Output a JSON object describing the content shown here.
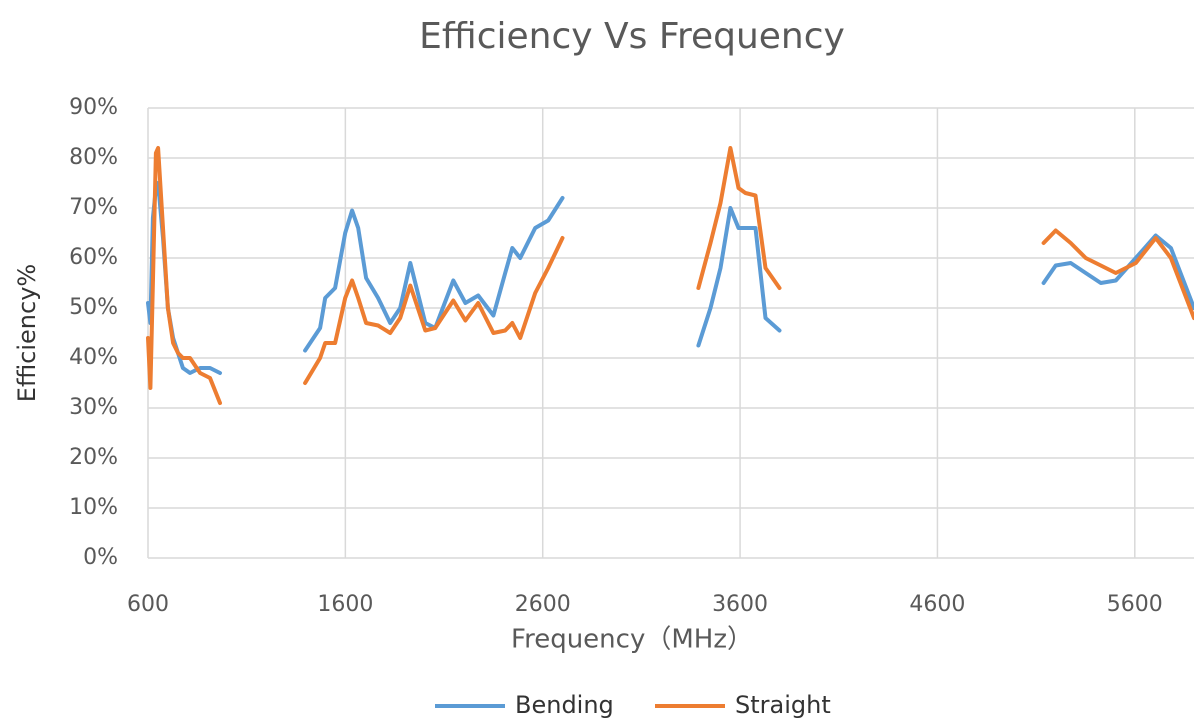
{
  "chart_data": {
    "type": "line",
    "title": "Efficiency Vs Frequency",
    "x_label": "Frequency（MHz）",
    "y_label": "Efficiency%",
    "xlim": [
      600,
      5900
    ],
    "xticks": [
      600,
      1600,
      2600,
      3600,
      4600,
      5600
    ],
    "ylim": [
      0,
      90
    ],
    "yticks": [
      {
        "value": 0,
        "label": "0%"
      },
      {
        "value": 10,
        "label": "10%"
      },
      {
        "value": 20,
        "label": "20%"
      },
      {
        "value": 30,
        "label": "30%"
      },
      {
        "value": 40,
        "label": "40%"
      },
      {
        "value": 50,
        "label": "50%"
      },
      {
        "value": 60,
        "label": "60%"
      },
      {
        "value": 70,
        "label": "70%"
      },
      {
        "value": 80,
        "label": "80%"
      },
      {
        "value": 90,
        "label": "90%"
      }
    ],
    "grid": true,
    "legend": "bottom",
    "x": [
      600,
      612,
      625,
      640,
      651,
      676,
      701,
      727,
      752,
      777,
      813,
      864,
      914,
      965,
      null,
      1396,
      1472,
      1498,
      1548,
      1599,
      1634,
      1665,
      1705,
      1766,
      1827,
      1878,
      1929,
      2005,
      2055,
      2147,
      2208,
      2273,
      2350,
      2410,
      2446,
      2486,
      2562,
      2628,
      2700,
      null,
      3389,
      3450,
      3501,
      3551,
      3592,
      3627,
      3678,
      3729,
      3800,
      null,
      5138,
      5199,
      5275,
      5351,
      5428,
      5504,
      5605,
      5706,
      5783,
      5900
    ],
    "series": [
      {
        "name": "Bending",
        "color": "#5b9bd5",
        "values": [
          51,
          47,
          68,
          74,
          75,
          64,
          50,
          44,
          41,
          38,
          37,
          38,
          38,
          37,
          null,
          41.5,
          46,
          52,
          54,
          65,
          69.5,
          66,
          56,
          52,
          47,
          50,
          59,
          47,
          46,
          55.5,
          51,
          52.5,
          48.5,
          57,
          62,
          60,
          66,
          67.5,
          72,
          null,
          42.5,
          50,
          58,
          70,
          66,
          66,
          66,
          48,
          45.5,
          null,
          55,
          58.5,
          59,
          57,
          55,
          55.5,
          60,
          64.5,
          62,
          50
        ]
      },
      {
        "name": "Straight",
        "color": "#ed7d31",
        "values": [
          44,
          34,
          55,
          81,
          82,
          66,
          50,
          43,
          41,
          40,
          40,
          37,
          36,
          31,
          null,
          35,
          40,
          43,
          43,
          52,
          55.5,
          52,
          47,
          46.5,
          45,
          48,
          54.5,
          45.5,
          46,
          51.5,
          47.5,
          51,
          45,
          45.5,
          47,
          44,
          53,
          58,
          64,
          null,
          54,
          63,
          71,
          82,
          74,
          73,
          72.5,
          58,
          54,
          null,
          63,
          65.5,
          63,
          60,
          58.5,
          57,
          59,
          64,
          60,
          48
        ]
      }
    ]
  }
}
